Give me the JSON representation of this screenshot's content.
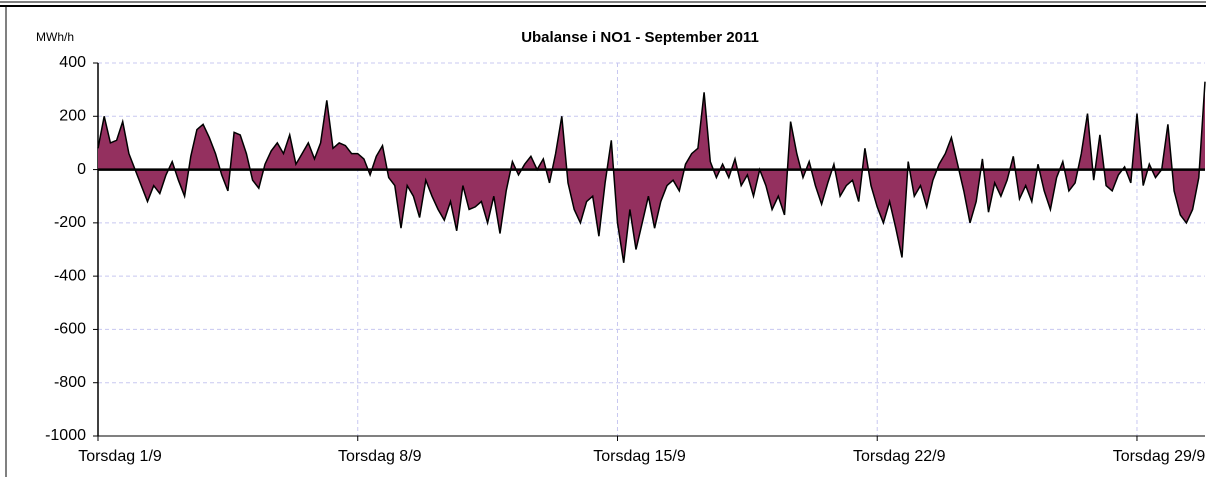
{
  "chart_data": {
    "type": "area",
    "title": "Ubalanse i NO1 -  September 2011",
    "y_label": "MWh/h",
    "x": [
      0,
      4,
      8,
      12,
      16,
      20,
      24,
      28,
      32,
      36,
      40,
      44,
      48,
      52,
      56,
      60,
      64,
      68,
      72,
      76,
      80,
      84,
      88,
      92,
      96,
      100,
      104,
      108,
      112,
      116,
      120,
      124,
      128,
      132,
      136,
      140,
      144,
      148,
      152,
      156,
      160,
      164,
      168,
      172,
      176,
      180,
      184,
      188,
      192,
      196,
      200,
      204,
      208,
      212,
      216,
      220,
      224,
      228,
      232,
      236,
      240,
      244,
      248,
      252,
      256,
      260,
      264,
      268,
      272,
      276,
      280,
      284,
      288,
      292,
      296,
      300,
      304,
      308,
      312,
      316,
      320,
      324,
      328,
      332,
      336,
      340,
      344,
      348,
      352,
      356,
      360,
      364,
      368,
      372,
      376,
      380,
      384,
      388,
      392,
      396,
      400,
      404,
      408,
      412,
      416,
      420,
      424,
      428,
      432,
      436,
      440,
      444,
      448,
      452,
      456,
      460,
      464,
      468,
      472,
      476,
      480,
      484,
      488,
      492,
      496,
      500,
      504,
      508,
      512,
      516,
      520,
      524,
      528,
      532,
      536,
      540,
      544,
      548,
      552,
      556,
      560,
      564,
      568,
      572,
      576,
      580,
      584,
      588,
      592,
      596,
      600,
      604,
      608,
      612,
      616,
      620,
      624,
      628,
      632,
      636,
      640,
      644,
      648,
      652,
      656,
      660,
      664,
      668,
      672,
      676,
      680,
      684,
      688,
      692,
      696,
      700,
      704,
      708,
      712,
      716
    ],
    "series": [
      {
        "name": "NO1",
        "color": "#94305f",
        "values": [
          80,
          200,
          100,
          110,
          180,
          60,
          0,
          -60,
          -120,
          -60,
          -90,
          -20,
          30,
          -40,
          -100,
          50,
          150,
          170,
          120,
          60,
          -20,
          -80,
          140,
          130,
          60,
          -40,
          -70,
          20,
          70,
          100,
          60,
          130,
          20,
          60,
          100,
          40,
          100,
          260,
          80,
          100,
          90,
          60,
          60,
          40,
          -20,
          50,
          90,
          -30,
          -60,
          -220,
          -60,
          -100,
          -180,
          -40,
          -100,
          -150,
          -190,
          -120,
          -230,
          -60,
          -150,
          -140,
          -120,
          -200,
          -100,
          -240,
          -80,
          30,
          -20,
          20,
          50,
          0,
          40,
          -50,
          60,
          200,
          -50,
          -150,
          -200,
          -120,
          -100,
          -250,
          -50,
          110,
          -200,
          -350,
          -150,
          -300,
          -200,
          -100,
          -220,
          -120,
          -60,
          -40,
          -80,
          20,
          60,
          80,
          290,
          30,
          -30,
          20,
          -30,
          40,
          -60,
          -20,
          -100,
          0,
          -60,
          -150,
          -100,
          -170,
          180,
          60,
          -30,
          30,
          -60,
          -130,
          -50,
          20,
          -100,
          -60,
          -40,
          -120,
          80,
          -60,
          -140,
          -200,
          -120,
          -220,
          -330,
          30,
          -100,
          -60,
          -140,
          -40,
          20,
          60,
          120,
          20,
          -80,
          -200,
          -120,
          40,
          -160,
          -50,
          -100,
          -40,
          50,
          -110,
          -60,
          -120,
          20,
          -80,
          -150,
          -30,
          30,
          -80,
          -50,
          60,
          210,
          -40,
          130,
          -60,
          -80,
          -20,
          10,
          -50,
          210,
          -60,
          20,
          -30,
          0,
          170,
          -80,
          -170,
          -200,
          -150,
          -30,
          330
        ]
      }
    ],
    "xlim": [
      0,
      716
    ],
    "xticks": [
      {
        "value": 0,
        "label": "Torsdag 1/9"
      },
      {
        "value": 168,
        "label": "Torsdag 8/9"
      },
      {
        "value": 336,
        "label": "Torsdag 15/9"
      },
      {
        "value": 504,
        "label": "Torsdag 22/9"
      },
      {
        "value": 672,
        "label": "Torsdag 29/9"
      }
    ],
    "ylim": [
      -1000,
      400
    ],
    "yticks": [
      -1000,
      -800,
      -600,
      -400,
      -200,
      0,
      200,
      400
    ],
    "grid": true
  }
}
